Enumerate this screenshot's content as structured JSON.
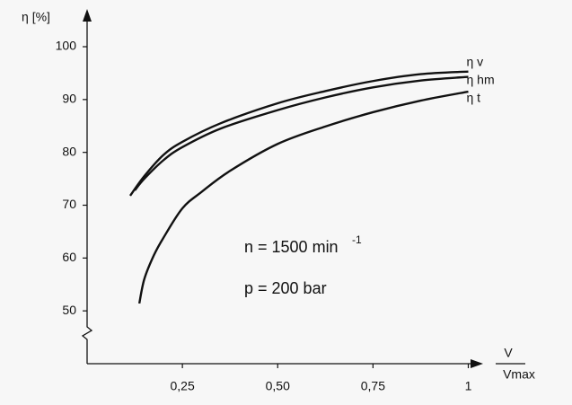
{
  "chart_data": {
    "type": "line",
    "y_label": "η [%]",
    "x_label": {
      "numerator": "V",
      "denominator": "Vmax"
    },
    "annotations": [
      {
        "text": "n = 1500 min",
        "sup": "-1"
      },
      {
        "text": "p = 200 bar"
      }
    ],
    "xlim": [
      0,
      1.02
    ],
    "ylim": [
      40,
      105
    ],
    "xticks": [
      {
        "value": 0.25,
        "label": "0,25"
      },
      {
        "value": 0.5,
        "label": "0,50"
      },
      {
        "value": 0.75,
        "label": "0,75"
      },
      1
    ],
    "yticks": [
      50,
      60,
      70,
      80,
      90,
      100
    ],
    "series": [
      {
        "name": "η v",
        "color": "#111111",
        "x": [
          0.113,
          0.15,
          0.2,
          0.25,
          0.35,
          0.5,
          0.625,
          0.75,
          0.875,
          1
        ],
        "values": [
          71.8,
          75.5,
          79.5,
          82,
          85.5,
          89.3,
          91.6,
          93.5,
          94.8,
          95.3
        ]
      },
      {
        "name": "η hm",
        "color": "#111111",
        "x": [
          0.125,
          0.15,
          0.2,
          0.25,
          0.35,
          0.5,
          0.625,
          0.75,
          0.875,
          1
        ],
        "values": [
          72.8,
          75,
          78.5,
          81,
          84.5,
          88,
          90.4,
          92.3,
          93.6,
          94.3
        ]
      },
      {
        "name": "η t",
        "color": "#111111",
        "x": [
          0.137,
          0.15,
          0.175,
          0.2,
          0.25,
          0.3,
          0.375,
          0.5,
          0.625,
          0.75,
          0.875,
          1
        ],
        "values": [
          51.4,
          56,
          60.5,
          63.8,
          69.4,
          72.5,
          76.5,
          81.6,
          84.9,
          87.6,
          89.8,
          91.5
        ]
      }
    ]
  }
}
